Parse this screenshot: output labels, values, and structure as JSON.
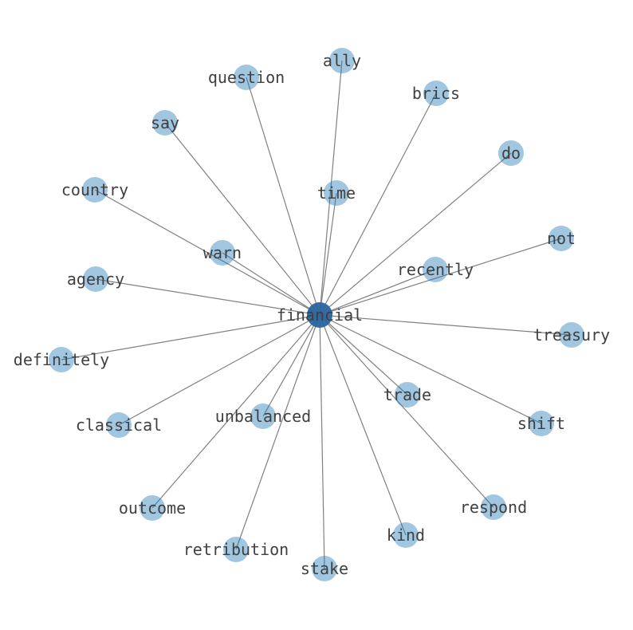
{
  "graph": {
    "center": "financial",
    "nodes": [
      "financial",
      "ally",
      "question",
      "brics",
      "say",
      "do",
      "country",
      "time",
      "not",
      "warn",
      "recently",
      "agency",
      "treasury",
      "definitely",
      "trade",
      "classical",
      "unbalanced",
      "shift",
      "respond",
      "outcome",
      "kind",
      "retribution",
      "stake"
    ],
    "edges_from_center_to": [
      "ally",
      "question",
      "brics",
      "say",
      "do",
      "country",
      "time",
      "not",
      "warn",
      "recently",
      "agency",
      "treasury",
      "definitely",
      "trade",
      "classical",
      "unbalanced",
      "shift",
      "respond",
      "outcome",
      "kind",
      "retribution",
      "stake"
    ]
  },
  "colors": {
    "node": "#1f77b4",
    "center_node": "#2a64a0",
    "edge": "#808080",
    "label": "#404040"
  }
}
